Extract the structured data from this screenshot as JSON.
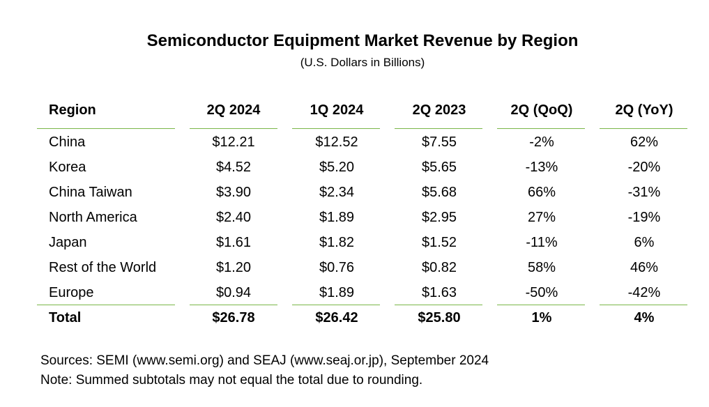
{
  "chart_data": {
    "type": "table",
    "title": "Semiconductor Equipment Market Revenue by Region",
    "subtitle": "(U.S. Dollars in Billions)",
    "columns": [
      "Region",
      "2Q 2024",
      "1Q 2024",
      "2Q 2023",
      "2Q (QoQ)",
      "2Q (YoY)"
    ],
    "rows": [
      [
        "China",
        "$12.21",
        "$12.52",
        "$7.55",
        "-2%",
        "62%"
      ],
      [
        "Korea",
        "$4.52",
        "$5.20",
        "$5.65",
        "-13%",
        "-20%"
      ],
      [
        "China Taiwan",
        "$3.90",
        "$2.34",
        "$5.68",
        "66%",
        "-31%"
      ],
      [
        "North America",
        "$2.40",
        "$1.89",
        "$2.95",
        "27%",
        "-19%"
      ],
      [
        "Japan",
        "$1.61",
        "$1.82",
        "$1.52",
        "-11%",
        "6%"
      ],
      [
        "Rest of the World",
        "$1.20",
        "$0.76",
        "$0.82",
        "58%",
        "46%"
      ],
      [
        "Europe",
        "$0.94",
        "$1.89",
        "$1.63",
        "-50%",
        "-42%"
      ]
    ],
    "total": [
      "Total",
      "$26.78",
      "$26.42",
      "$25.80",
      "1%",
      "4%"
    ],
    "notes": [
      "Sources: SEMI (www.semi.org) and SEAJ (www.seaj.or.jp), September 2024",
      "Note: Summed subtotals may not equal the total due to rounding."
    ]
  },
  "colors": {
    "rule": "#7ab648",
    "text": "#000000",
    "background": "#ffffff"
  }
}
